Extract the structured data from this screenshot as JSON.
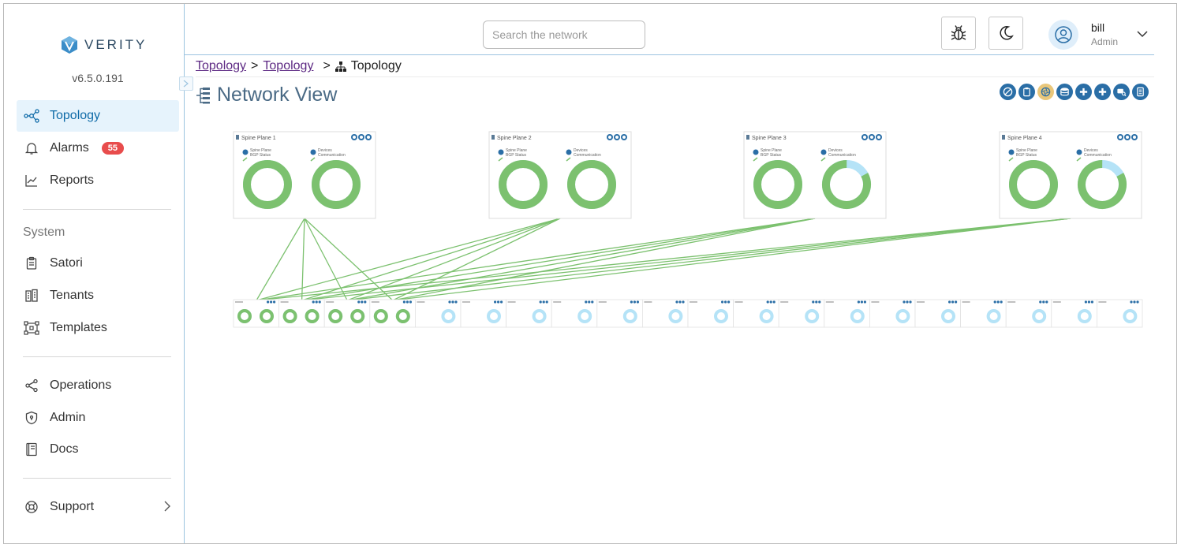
{
  "app": {
    "logo_text": "VERITY",
    "version": "v6.5.0.191",
    "brand_color": "#3b8dc8",
    "accent_color": "#0f6ba8"
  },
  "sidebar": {
    "items": [
      {
        "label": "Topology",
        "icon": "topology-icon",
        "active": true
      },
      {
        "label": "Alarms",
        "icon": "bell-icon",
        "badge": "55"
      },
      {
        "label": "Reports",
        "icon": "chart-icon"
      }
    ],
    "system_label": "System",
    "system_items": [
      {
        "label": "Satori",
        "icon": "clipboard-icon"
      },
      {
        "label": "Tenants",
        "icon": "building-icon"
      },
      {
        "label": "Templates",
        "icon": "templates-icon"
      }
    ],
    "other_items": [
      {
        "label": "Operations",
        "icon": "share-icon"
      },
      {
        "label": "Admin",
        "icon": "shield-icon"
      },
      {
        "label": "Docs",
        "icon": "book-icon"
      }
    ],
    "support": {
      "label": "Support",
      "icon": "lifebuoy-icon"
    }
  },
  "header": {
    "search_placeholder": "Search the network",
    "user_name": "bill",
    "user_role": "Admin"
  },
  "breadcrumb": {
    "items": [
      "Topology",
      "Topology",
      "Topology"
    ],
    "separator": ">"
  },
  "page": {
    "title": "Network View"
  },
  "colors": {
    "healthy": "#7cc16f",
    "partial": "#b5e3f7",
    "link": "#7cc16f",
    "toolbar": "#2a6ea6"
  },
  "spine_planes": [
    {
      "name": "Spine Plane 1",
      "bgp_label": [
        "Spine Plane",
        "BGP Status"
      ],
      "comm_label": [
        "Devices",
        "Communication"
      ],
      "bgp_ok_pct": 100,
      "comm_ok_pct": 100
    },
    {
      "name": "Spine Plane 2",
      "bgp_label": [
        "Spine Plane",
        "BGP Status"
      ],
      "comm_label": [
        "Devices",
        "Communication"
      ],
      "bgp_ok_pct": 100,
      "comm_ok_pct": 100
    },
    {
      "name": "Spine Plane 3",
      "bgp_label": [
        "Spine Plane",
        "BGP Status"
      ],
      "comm_label": [
        "Devices",
        "Communication"
      ],
      "bgp_ok_pct": 100,
      "comm_ok_pct": 83
    },
    {
      "name": "Spine Plane 4",
      "bgp_label": [
        "Spine Plane",
        "BGP Status"
      ],
      "comm_label": [
        "Devices",
        "Communication"
      ],
      "bgp_ok_pct": 100,
      "comm_ok_pct": 83
    }
  ],
  "pods": {
    "count": 20,
    "connected_pods": 4,
    "connected_state": "healthy",
    "other_state": "partial"
  }
}
